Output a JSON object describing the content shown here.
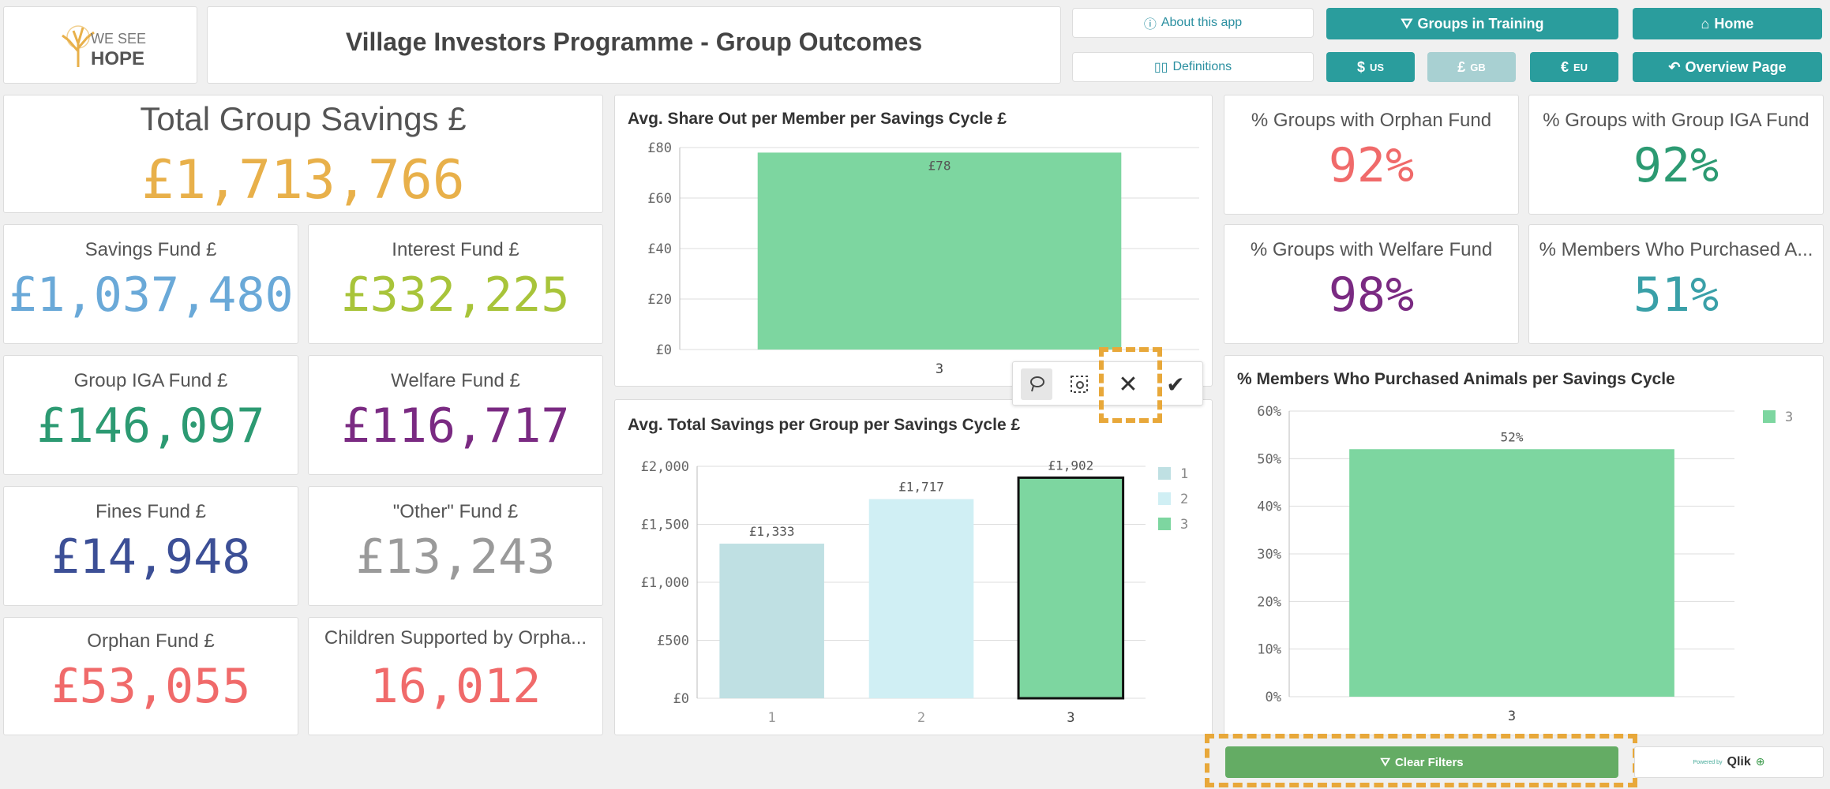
{
  "header": {
    "logo_line1": "WE SEE",
    "logo_line2": "HOPE",
    "title": "Village Investors Programme - Group Outcomes",
    "about_label": "About this app",
    "definitions_label": "Definitions",
    "groups_training_label": "Groups in Training",
    "home_label": "Home",
    "usd_label": "$",
    "usd_sub": "US",
    "gbp_label": "£",
    "gbp_sub": "GB",
    "eur_label": "€",
    "eur_sub": "EU",
    "overview_label": "Overview Page"
  },
  "kpis": {
    "total_savings": {
      "label": "Total Group Savings £",
      "value": "£1,713,766",
      "color": "#e8b04a"
    },
    "savings_fund": {
      "label": "Savings Fund £",
      "value": "£1,037,480",
      "color": "#6aa9d8"
    },
    "interest_fund": {
      "label": "Interest Fund £",
      "value": "£332,225",
      "color": "#a8c43a"
    },
    "iga_fund": {
      "label": "Group IGA Fund £",
      "value": "£146,097",
      "color": "#2c9a72"
    },
    "welfare_fund": {
      "label": "Welfare Fund £",
      "value": "£116,717",
      "color": "#7a2a82"
    },
    "fines_fund": {
      "label": "Fines Fund £",
      "value": "£14,948",
      "color": "#3c4f96"
    },
    "other_fund": {
      "label": "\"Other\" Fund £",
      "value": "£13,243",
      "color": "#9a9a9a"
    },
    "orphan_fund": {
      "label": "Orphan Fund £",
      "value": "£53,055",
      "color": "#f06a6a"
    },
    "children_supported": {
      "label": "Children Supported by Orpha...",
      "value": "16,012",
      "color": "#f06a6a"
    },
    "pct_orphan": {
      "label": "% Groups with Orphan Fund",
      "value": "92%",
      "color": "#f06a6a"
    },
    "pct_iga": {
      "label": "% Groups with Group IGA Fund",
      "value": "92%",
      "color": "#2c9a72"
    },
    "pct_welfare": {
      "label": "% Groups with Welfare Fund",
      "value": "98%",
      "color": "#7a2a82"
    },
    "pct_animals": {
      "label": "% Members Who Purchased A...",
      "value": "51%",
      "color": "#3aa0a8"
    }
  },
  "selection_toolbar": {
    "lasso": "lasso-icon",
    "select_values": "select-values-icon",
    "cancel": "close-icon",
    "confirm": "check-icon"
  },
  "footer": {
    "clear_filters_label": "Clear Filters",
    "powered_by": "Powered by",
    "qlik_label": "Qlik"
  },
  "chart_data": [
    {
      "type": "bar",
      "title": "Avg. Share Out per Member per Savings Cycle £",
      "categories": [
        "3"
      ],
      "values": [
        78
      ],
      "labels": [
        "£78"
      ],
      "ylim": [
        0,
        80
      ],
      "yticks": [
        "£0",
        "£20",
        "£40",
        "£60",
        "£80"
      ],
      "grid": true,
      "colors": [
        "#7dd6a0"
      ]
    },
    {
      "type": "bar",
      "title": "Avg. Total Savings per Group per Savings Cycle £",
      "categories": [
        "1",
        "2",
        "3"
      ],
      "values": [
        1333,
        1717,
        1902
      ],
      "labels": [
        "£1,333",
        "£1,717",
        "£1,902"
      ],
      "ylim": [
        0,
        2000
      ],
      "yticks": [
        "£0",
        "£500",
        "£1,000",
        "£1,500",
        "£2,000"
      ],
      "grid": true,
      "colors": [
        "#bfe0e3",
        "#d0eff4",
        "#7dd6a0"
      ],
      "legend": [
        "1",
        "2",
        "3"
      ],
      "legend_position": "right",
      "selected_category": "3"
    },
    {
      "type": "bar",
      "title": "% Members Who Purchased Animals per Savings Cycle",
      "categories": [
        "3"
      ],
      "values": [
        52
      ],
      "labels": [
        "52%"
      ],
      "ylim": [
        0,
        60
      ],
      "yticks": [
        "0%",
        "10%",
        "20%",
        "30%",
        "40%",
        "50%",
        "60%"
      ],
      "grid": true,
      "colors": [
        "#7dd6a0"
      ],
      "legend": [
        "3"
      ],
      "legend_position": "top-right"
    }
  ]
}
